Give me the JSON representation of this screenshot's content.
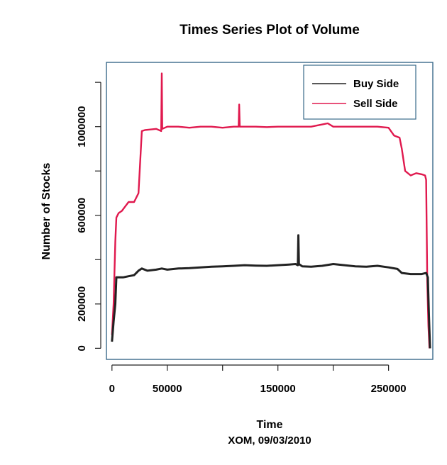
{
  "chart_data": {
    "type": "line",
    "title": "Times Series Plot of Volume",
    "xlabel": "Time",
    "subtitle": "XOM, 09/03/2010",
    "ylabel": "Number of Stocks",
    "xlim": [
      -5000,
      290000
    ],
    "ylim": [
      -50000,
      1290000
    ],
    "x_ticks": [
      0,
      50000,
      100000,
      150000,
      200000,
      250000
    ],
    "x_tick_labels": [
      "0",
      "50000",
      "",
      "150000",
      "",
      "250000"
    ],
    "y_ticks": [
      0,
      200000,
      400000,
      600000,
      800000,
      1000000,
      1200000
    ],
    "y_tick_labels": [
      "0",
      "200000",
      "",
      "600000",
      "",
      "1000000",
      ""
    ],
    "grid": false,
    "legend": "top-right",
    "series": [
      {
        "name": "Buy Side",
        "color": "#222222",
        "x": [
          0,
          1500,
          3000,
          4000,
          6000,
          10000,
          15000,
          20000,
          24000,
          27000,
          32000,
          40000,
          45000,
          50000,
          60000,
          70000,
          80000,
          90000,
          100000,
          110000,
          120000,
          130000,
          140000,
          150000,
          160000,
          166000,
          168000,
          168500,
          169000,
          172000,
          180000,
          190000,
          200000,
          210000,
          220000,
          230000,
          240000,
          250000,
          258000,
          262000,
          270000,
          280000,
          284000,
          285500,
          286500,
          287500
        ],
        "y": [
          30000,
          120000,
          200000,
          320000,
          320000,
          320000,
          325000,
          330000,
          350000,
          360000,
          350000,
          355000,
          360000,
          355000,
          360000,
          362000,
          365000,
          368000,
          370000,
          372000,
          375000,
          373000,
          372000,
          375000,
          378000,
          380000,
          375000,
          510000,
          380000,
          370000,
          368000,
          372000,
          380000,
          375000,
          370000,
          368000,
          372000,
          365000,
          358000,
          340000,
          335000,
          335000,
          340000,
          320000,
          150000,
          0
        ]
      },
      {
        "name": "Sell Side",
        "color": "#e0194e",
        "x": [
          0,
          1500,
          3000,
          4000,
          6000,
          9000,
          12000,
          15000,
          20000,
          24000,
          27000,
          30000,
          40000,
          44500,
          45000,
          45500,
          50000,
          60000,
          70000,
          80000,
          90000,
          100000,
          110000,
          114500,
          115000,
          115500,
          120000,
          130000,
          140000,
          150000,
          160000,
          170000,
          180000,
          190000,
          195000,
          200000,
          210000,
          220000,
          230000,
          240000,
          250000,
          255000,
          260000,
          262000,
          265000,
          270000,
          275000,
          280000,
          283000,
          284000,
          285000,
          286000,
          287000
        ],
        "y": [
          60000,
          200000,
          480000,
          590000,
          610000,
          620000,
          640000,
          660000,
          660000,
          700000,
          980000,
          985000,
          990000,
          980000,
          1240000,
          990000,
          1000000,
          1000000,
          995000,
          1000000,
          1000000,
          995000,
          1000000,
          1000000,
          1100000,
          1000000,
          1000000,
          1000000,
          998000,
          1000000,
          1000000,
          1000000,
          1000000,
          1010000,
          1015000,
          1000000,
          1000000,
          1000000,
          1000000,
          1000000,
          995000,
          960000,
          950000,
          900000,
          800000,
          780000,
          790000,
          785000,
          780000,
          760000,
          300000,
          100000,
          0
        ]
      }
    ]
  }
}
